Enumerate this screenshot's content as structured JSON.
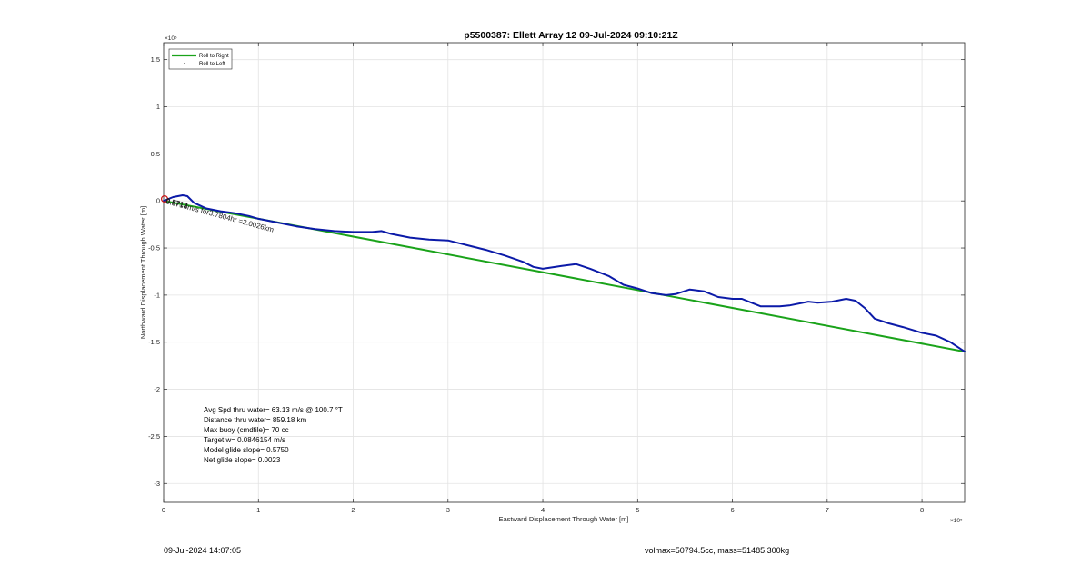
{
  "chart_data": {
    "type": "line",
    "title": "p5500387: Ellett Array 12 09-Jul-2024 09:10:21Z",
    "xlabel": "Eastward Displacement Through Water [m]",
    "ylabel": "Northward Displacement Through Water [m]",
    "x_exponent": "×10⁵",
    "y_exponent": "×10⁵",
    "xlim": [
      0,
      8.45
    ],
    "ylim": [
      -3.2,
      1.68
    ],
    "x_ticks": [
      0,
      1,
      2,
      3,
      4,
      5,
      6,
      7,
      8
    ],
    "x_tick_labels": [
      "0",
      "1",
      "2",
      "3",
      "4",
      "5",
      "6",
      "7",
      "8"
    ],
    "y_ticks": [
      -3,
      -2.5,
      -2,
      -1.5,
      -1,
      -0.5,
      0,
      0.5,
      1,
      1.5
    ],
    "y_tick_labels": [
      "-3",
      "-2.5",
      "-2",
      "-1.5",
      "-1",
      "-0.5",
      "0",
      "0.5",
      "1",
      "1.5"
    ],
    "grid": true,
    "legend_position": "top-left",
    "series": [
      {
        "name": "Roll to Right",
        "color": "#1aa31a",
        "x": [
          0,
          8.45
        ],
        "y": [
          0,
          -1.6
        ]
      },
      {
        "name": "",
        "color": "#0b1aa8",
        "x": [
          0,
          0.1,
          0.2,
          0.25,
          0.32,
          0.45,
          0.6,
          0.75,
          0.9,
          1.0,
          1.2,
          1.4,
          1.6,
          1.8,
          2.0,
          2.2,
          2.3,
          2.4,
          2.6,
          2.8,
          3.0,
          3.2,
          3.4,
          3.6,
          3.8,
          3.9,
          4.0,
          4.2,
          4.35,
          4.5,
          4.7,
          4.85,
          5.0,
          5.15,
          5.3,
          5.4,
          5.55,
          5.7,
          5.85,
          6.0,
          6.1,
          6.2,
          6.3,
          6.5,
          6.6,
          6.8,
          6.9,
          7.05,
          7.2,
          7.3,
          7.4,
          7.5,
          7.65,
          7.8,
          8.0,
          8.15,
          8.3,
          8.45
        ],
        "y": [
          0,
          0.04,
          0.06,
          0.05,
          -0.02,
          -0.08,
          -0.11,
          -0.13,
          -0.16,
          -0.19,
          -0.23,
          -0.27,
          -0.3,
          -0.32,
          -0.33,
          -0.33,
          -0.32,
          -0.35,
          -0.39,
          -0.41,
          -0.42,
          -0.47,
          -0.52,
          -0.58,
          -0.65,
          -0.7,
          -0.72,
          -0.69,
          -0.67,
          -0.72,
          -0.8,
          -0.89,
          -0.93,
          -0.98,
          -1.0,
          -0.99,
          -0.94,
          -0.96,
          -1.02,
          -1.04,
          -1.04,
          -1.08,
          -1.12,
          -1.12,
          -1.11,
          -1.07,
          -1.08,
          -1.07,
          -1.04,
          -1.06,
          -1.14,
          -1.25,
          -1.3,
          -1.34,
          -1.4,
          -1.43,
          -1.5,
          -1.6
        ]
      },
      {
        "name": "Roll to Left",
        "color": "#444444",
        "x": [],
        "y": []
      }
    ],
    "start_marker_color": "#cc1b1b",
    "trajectory_label": "0.5713m/s for3.7804hr =2.0026km",
    "trajectory_label_overlap": "0.5713",
    "stats": [
      "Avg Spd thru water= 63.13 m/s @ 100.7 °T",
      "Distance thru water= 859.18 km",
      "Max buoy (cmdfile)= 70 cc",
      "Target w= 0.0846154 m/s",
      "Model glide slope= 0.5750",
      "Net glide slope= 0.0023"
    ]
  },
  "footer": {
    "left": "09-Jul-2024 14:07:05",
    "right": "volmax=50794.5cc, mass=51485.300kg"
  }
}
